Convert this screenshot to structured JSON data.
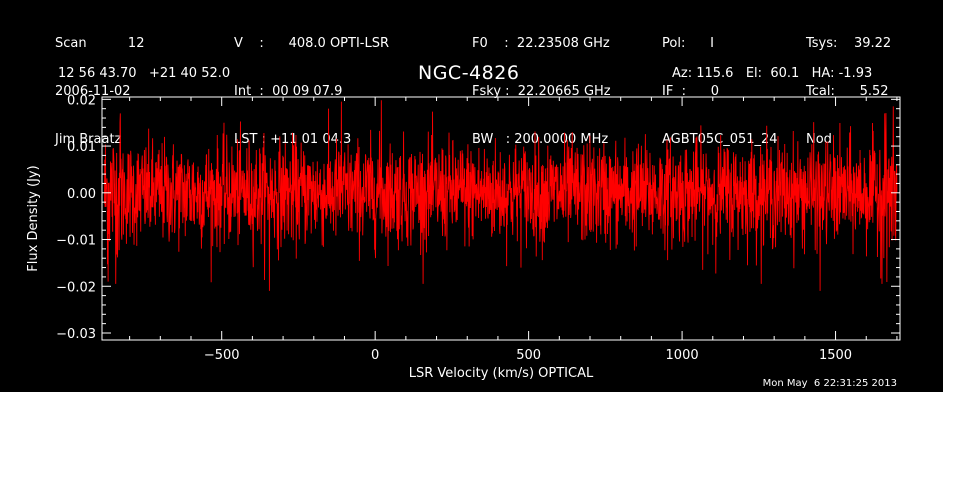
{
  "header": {
    "col1": [
      "Scan          12",
      "2006-11-02",
      "Jim Braatz"
    ],
    "col2": [
      "V    :      408.0 OPTI-LSR",
      "Int  :  00 09 07.9",
      "LST : +11 01 04.3"
    ],
    "col3": [
      "F0    :  22.23508 GHz",
      "Fsky :  22.20665 GHz",
      "BW   : 200.0000 MHz"
    ],
    "col4": [
      "Pol:      I",
      "IF  :      0",
      "AGBT05C_051_24"
    ],
    "col5": [
      "Tsys:    39.22",
      "Tcal:      5.52",
      "Nod"
    ],
    "coords": "12 56 43.70   +21 40 52.0",
    "azel": "Az: 115.6   El:  60.1   HA: -1.93"
  },
  "footer": {
    "timestamp": "Mon May  6 22:31:25 2013"
  },
  "colors": {
    "background": "#000000",
    "trace": "#ff0000",
    "axes": "#ffffff"
  },
  "chart_data": {
    "type": "line",
    "title": "NGC-4826",
    "xlabel": "LSR Velocity (km/s) OPTICAL",
    "ylabel": "Flux Density (Jy)",
    "xlim": [
      -890,
      1710
    ],
    "ylim": [
      -0.0315,
      0.0205
    ],
    "xticks": [
      -500,
      0,
      500,
      1000,
      1500
    ],
    "xtick_labels": [
      "−500",
      "0",
      "500",
      "1000",
      "1500"
    ],
    "yticks": [
      0.02,
      0.01,
      0.0,
      -0.01,
      -0.02,
      -0.03
    ],
    "ytick_labels": [
      "0.02",
      "0.01",
      "0.00",
      "−0.01",
      "−0.02",
      "−0.03"
    ],
    "series": [
      {
        "color": "#ff0000",
        "x_start": -882,
        "x_end": 1700,
        "noise_sigma": 0.0055,
        "baseline": 0.0,
        "peaks": [
          {
            "x": -830,
            "y": 0.017
          },
          {
            "x": -110,
            "y": 0.0195
          },
          {
            "x": 20,
            "y": 0.0198
          },
          {
            "x": 1660,
            "y": 0.017
          },
          {
            "x": -345,
            "y": -0.021
          },
          {
            "x": 1450,
            "y": -0.021
          },
          {
            "x": -870,
            "y": -0.019
          }
        ]
      }
    ]
  }
}
